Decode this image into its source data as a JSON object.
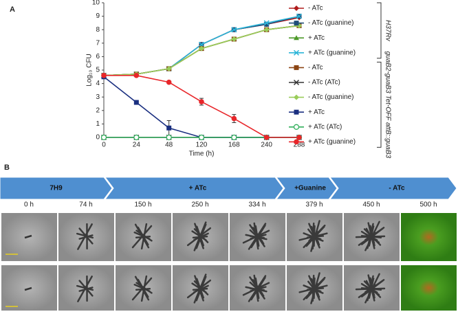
{
  "chart_data": {
    "type": "line",
    "panel_label": "A",
    "xlabel": "Time (h)",
    "ylabel": "Log₁₀ CFU",
    "categories": [
      "0",
      "24",
      "48",
      "120",
      "168",
      "240",
      "288"
    ],
    "ylim": [
      0,
      10
    ],
    "yticks": [
      0,
      1,
      2,
      3,
      4,
      5,
      6,
      7,
      8,
      9,
      10
    ],
    "groups": [
      "H37Rv",
      "guaB2-guaB3 Tet-OFF attB::guaB3"
    ],
    "series": [
      {
        "name": "- ATc",
        "group": 0,
        "color": "#b01c1c",
        "marker": "diamond",
        "values": [
          4.6,
          4.7,
          5.1,
          6.9,
          8.0,
          8.4,
          8.9
        ]
      },
      {
        "name": "- ATc (guanine)",
        "group": 0,
        "color": "#1f4e79",
        "marker": "square",
        "values": [
          4.6,
          4.7,
          5.1,
          6.9,
          8.0,
          8.4,
          9.0
        ]
      },
      {
        "name": "+ ATc",
        "group": 0,
        "color": "#4e9a2a",
        "marker": "triangle",
        "values": [
          4.6,
          4.7,
          5.1,
          6.6,
          7.3,
          8.0,
          8.3
        ]
      },
      {
        "name": "+ ATc (guanine)",
        "group": 0,
        "color": "#2bb5d8",
        "marker": "x",
        "values": [
          4.6,
          4.7,
          5.1,
          6.9,
          8.0,
          8.5,
          9.0
        ]
      },
      {
        "name": "- ATc",
        "group": 1,
        "color": "#8b4513",
        "marker": "square",
        "values": [
          4.6,
          4.7,
          5.1,
          6.6,
          7.3,
          8.0,
          8.3
        ]
      },
      {
        "name": "- ATc (ATc)",
        "group": 1,
        "color": "#333333",
        "marker": "x",
        "values": [
          0,
          0,
          0,
          0,
          0,
          0,
          0
        ]
      },
      {
        "name": "- ATc (guanine)",
        "group": 1,
        "color": "#9acd5a",
        "marker": "diamond",
        "values": [
          4.6,
          4.7,
          5.1,
          6.6,
          7.3,
          8.0,
          8.3
        ]
      },
      {
        "name": "+ ATc",
        "group": 1,
        "color": "#1a2f80",
        "marker": "square",
        "values": [
          4.5,
          2.6,
          0.7,
          0,
          0,
          0,
          0
        ],
        "errors": [
          0,
          0.1,
          0.55,
          0,
          0,
          0,
          0
        ]
      },
      {
        "name": "+ ATc (ATc)",
        "group": 1,
        "color": "#2fae5a",
        "marker": "open-circle",
        "values": [
          0,
          0,
          0,
          0,
          0,
          0,
          0
        ]
      },
      {
        "name": "+ ATc (guanine)",
        "group": 1,
        "color": "#e8262a",
        "marker": "circle",
        "values": [
          4.6,
          4.6,
          4.1,
          2.65,
          1.4,
          0,
          0
        ],
        "errors": [
          0,
          0,
          0.1,
          0.25,
          0.3,
          0,
          0
        ]
      }
    ]
  },
  "panel_b": {
    "panel_label": "B",
    "phases": [
      "7H9",
      "+ ATc",
      "+Guanine",
      "- ATc"
    ],
    "times": [
      "0 h",
      "74 h",
      "150 h",
      "250 h",
      "334 h",
      "379 h",
      "450 h",
      "500 h"
    ]
  }
}
